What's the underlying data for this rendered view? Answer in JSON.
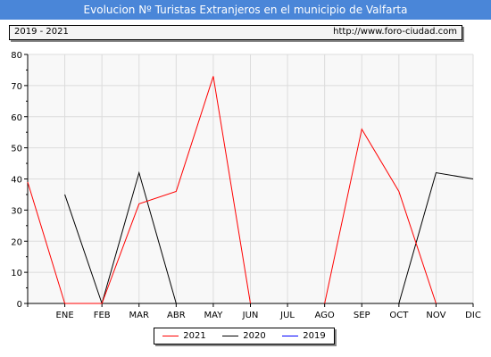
{
  "header": {
    "title": "Evolucion Nº Turistas Extranjeros en el municipio de Valfarta",
    "period": "2019 - 2021",
    "url": "http://www.foro-ciudad.com"
  },
  "chart_data": {
    "type": "line",
    "title": "Evolucion Nº Turistas Extranjeros en el municipio de Valfarta",
    "categories": [
      "",
      "ENE",
      "FEB",
      "MAR",
      "ABR",
      "MAY",
      "JUN",
      "JUL",
      "AGO",
      "SEP",
      "OCT",
      "NOV",
      "DIC"
    ],
    "ylim": [
      0,
      80
    ],
    "yticks": [
      0,
      10,
      20,
      30,
      40,
      50,
      60,
      70,
      80
    ],
    "grid": true,
    "legend_position": "bottom",
    "series": [
      {
        "name": "2021",
        "color": "#ff0000",
        "values": [
          39,
          0,
          0,
          32,
          36,
          73,
          0,
          null,
          0,
          56,
          36,
          0,
          null
        ]
      },
      {
        "name": "2020",
        "color": "#000000",
        "values": [
          null,
          35,
          0,
          42,
          0,
          null,
          null,
          null,
          null,
          null,
          0,
          42,
          40
        ]
      },
      {
        "name": "2019",
        "color": "#0000ff",
        "values": [
          null,
          null,
          null,
          null,
          null,
          null,
          null,
          null,
          null,
          null,
          null,
          null,
          null
        ]
      }
    ]
  }
}
